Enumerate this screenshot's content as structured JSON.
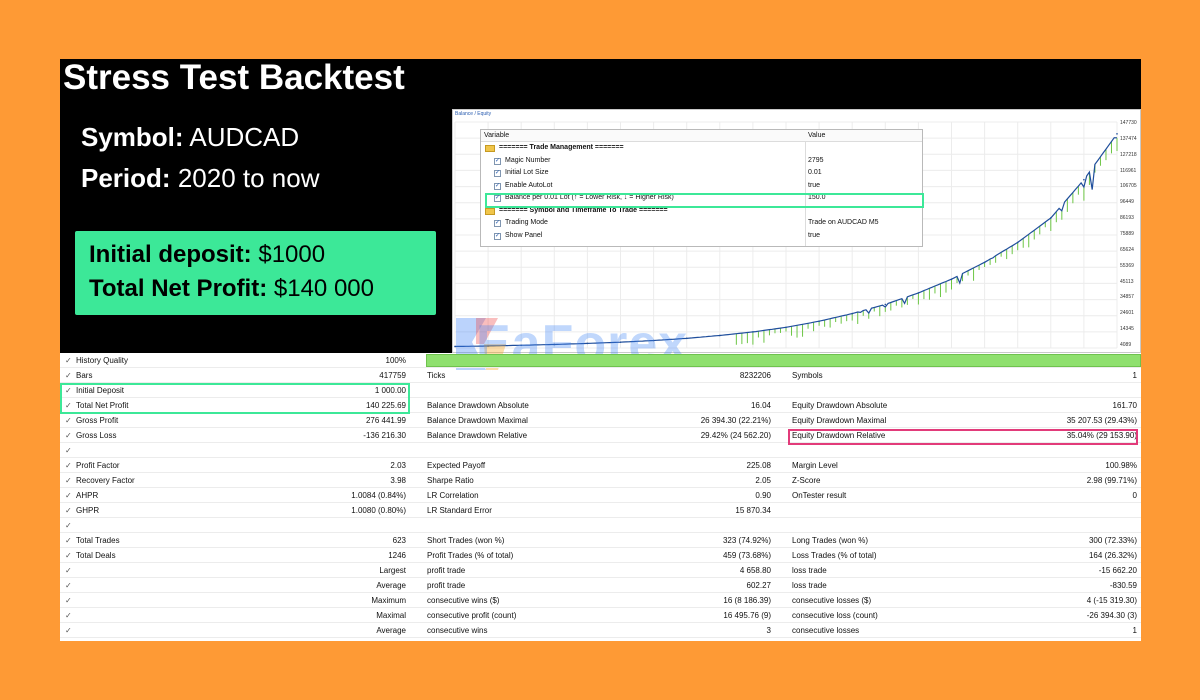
{
  "title": "Stress Test Backtest",
  "info": {
    "symbol_label": "Symbol:",
    "symbol_value": "AUDCAD",
    "period_label": "Period:",
    "period_value": "2020 to now"
  },
  "profit_box": {
    "deposit_label": "Initial deposit:",
    "deposit_value": "$1000",
    "profit_label": "Total Net Profit:",
    "profit_value": "$140 000"
  },
  "chart": {
    "tab_label": "Balance / Equity",
    "y_labels": [
      "147730",
      "137474",
      "127218",
      "116961",
      "106705",
      "96449",
      "86193",
      "75889",
      "65624",
      "55369",
      "45113",
      "34857",
      "24601",
      "14345",
      "4089"
    ],
    "colors": {
      "balance": "#1f4e9c",
      "equity": "#6cc644",
      "grid": "#ececec"
    }
  },
  "chart_data": {
    "type": "line",
    "x": [
      0,
      5,
      10,
      15,
      20,
      25,
      30,
      35,
      40,
      45,
      50,
      55,
      60,
      65,
      70,
      75,
      80,
      85,
      90,
      95,
      100
    ],
    "series": [
      {
        "values": [
          1000,
          1300,
          1800,
          2300,
          3000,
          3800,
          4900,
          6300,
          8200,
          10500,
          13500,
          17500,
          22500,
          28500,
          36000,
          45000,
          56000,
          69000,
          85000,
          110000,
          140000
        ]
      }
    ],
    "ylim": [
      0,
      147730
    ],
    "grid": true
  },
  "params": {
    "header": {
      "name": "Variable",
      "value": "Value"
    },
    "rows": [
      {
        "kind": "cat",
        "name": "======= Trade Management =======",
        "value": ""
      },
      {
        "kind": "var",
        "name": "Magic Number",
        "value": "2795"
      },
      {
        "kind": "var",
        "name": "Initial Lot Size",
        "value": "0.01"
      },
      {
        "kind": "var",
        "name": "Enable AutoLot",
        "value": "true"
      },
      {
        "kind": "var",
        "name": "Balance per 0.01 Lot (↑ = Lower Risk, ↓ = Higher Risk)",
        "value": "150.0"
      },
      {
        "kind": "cat",
        "name": "======= Symbol and Timeframe To Trade =======",
        "value": ""
      },
      {
        "kind": "var",
        "name": "Trading Mode",
        "value": "Trade on AUDCAD M5"
      },
      {
        "kind": "var",
        "name": "Show Panel",
        "value": "true"
      }
    ]
  },
  "watermark": {
    "text": "EaForex",
    "colors": [
      "#3b82f6",
      "#ef4444",
      "#f59e0b"
    ]
  },
  "stats": {
    "rows": [
      {
        "l1": "History Quality",
        "v1": "100%",
        "l2": "",
        "v2": "",
        "l3": "",
        "v3": ""
      },
      {
        "l1": "Bars",
        "v1": "417759",
        "l2": "Ticks",
        "v2": "8232206",
        "l3": "Symbols",
        "v3": "1"
      },
      {
        "l1": "Initial Deposit",
        "v1": "1 000.00",
        "l2": "",
        "v2": "",
        "l3": "",
        "v3": ""
      },
      {
        "l1": "Total Net Profit",
        "v1": "140 225.69",
        "l2": "Balance Drawdown Absolute",
        "v2": "16.04",
        "l3": "Equity Drawdown Absolute",
        "v3": "161.70"
      },
      {
        "l1": "Gross Profit",
        "v1": "276 441.99",
        "l2": "Balance Drawdown Maximal",
        "v2": "26 394.30 (22.21%)",
        "l3": "Equity Drawdown Maximal",
        "v3": "35 207.53 (29.43%)"
      },
      {
        "l1": "Gross Loss",
        "v1": "-136 216.30",
        "l2": "Balance Drawdown Relative",
        "v2": "29.42% (24 562.20)",
        "l3": "Equity Drawdown Relative",
        "v3": "35.04% (29 153.90)"
      },
      {
        "l1": "",
        "v1": "",
        "l2": "",
        "v2": "",
        "l3": "",
        "v3": ""
      },
      {
        "l1": "Profit Factor",
        "v1": "2.03",
        "l2": "Expected Payoff",
        "v2": "225.08",
        "l3": "Margin Level",
        "v3": "100.98%"
      },
      {
        "l1": "Recovery Factor",
        "v1": "3.98",
        "l2": "Sharpe Ratio",
        "v2": "2.05",
        "l3": "Z-Score",
        "v3": "2.98 (99.71%)"
      },
      {
        "l1": "AHPR",
        "v1": "1.0084 (0.84%)",
        "l2": "LR Correlation",
        "v2": "0.90",
        "l3": "OnTester result",
        "v3": "0"
      },
      {
        "l1": "GHPR",
        "v1": "1.0080 (0.80%)",
        "l2": "LR Standard Error",
        "v2": "15 870.34",
        "l3": "",
        "v3": ""
      },
      {
        "l1": "",
        "v1": "",
        "l2": "",
        "v2": "",
        "l3": "",
        "v3": ""
      },
      {
        "l1": "Total Trades",
        "v1": "623",
        "l2": "Short Trades (won %)",
        "v2": "323 (74.92%)",
        "l3": "Long Trades (won %)",
        "v3": "300 (72.33%)"
      },
      {
        "l1": "Total Deals",
        "v1": "1246",
        "l2": "Profit Trades (% of total)",
        "v2": "459 (73.68%)",
        "l3": "Loss Trades (% of total)",
        "v3": "164 (26.32%)"
      },
      {
        "l1": "",
        "v1": "Largest",
        "l2": "profit trade",
        "v2": "4 658.80",
        "l3": "loss trade",
        "v3": "-15 662.20"
      },
      {
        "l1": "",
        "v1": "Average",
        "l2": "profit trade",
        "v2": "602.27",
        "l3": "loss trade",
        "v3": "-830.59"
      },
      {
        "l1": "",
        "v1": "Maximum",
        "l2": "consecutive wins ($)",
        "v2": "16 (8 186.39)",
        "l3": "consecutive losses ($)",
        "v3": "4 (-15 319.30)"
      },
      {
        "l1": "",
        "v1": "Maximal",
        "l2": "consecutive profit (count)",
        "v2": "16 495.76 (9)",
        "l3": "consecutive loss (count)",
        "v3": "-26 394.30 (3)"
      },
      {
        "l1": "",
        "v1": "Average",
        "l2": "consecutive wins",
        "v2": "3",
        "l3": "consecutive losses",
        "v3": "1"
      }
    ]
  }
}
